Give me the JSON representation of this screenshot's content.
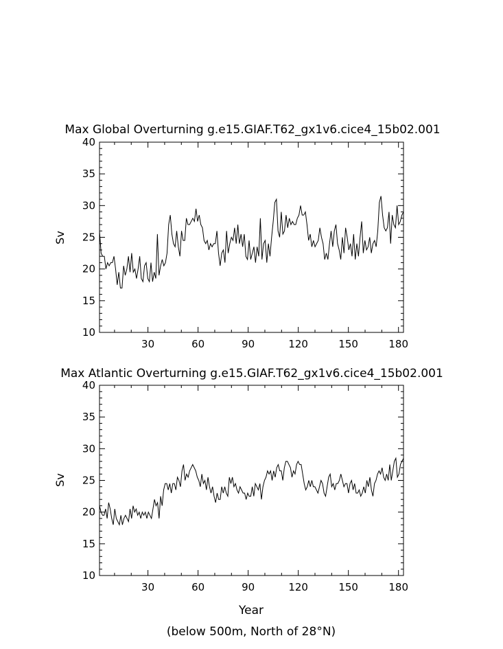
{
  "chart_data": [
    {
      "type": "line",
      "title": "Max Global Overturning g.e15.GIAF.T62_gx1v6.cice4_15b02.001",
      "ylabel": "Sv",
      "xlabel": "",
      "xlim": [
        1,
        183
      ],
      "ylim": [
        10,
        40
      ],
      "xticks": [
        30,
        60,
        90,
        120,
        150,
        180
      ],
      "yticks": [
        10,
        15,
        20,
        25,
        30,
        35,
        40
      ],
      "grid": false,
      "series": [
        {
          "values": [
            26.0,
            22.5,
            22.0,
            22.0,
            20.0,
            21.0,
            20.5,
            21.0,
            21.0,
            22.0,
            20.0,
            17.5,
            19.5,
            17.0,
            17.0,
            20.5,
            19.0,
            20.0,
            22.0,
            19.5,
            22.5,
            19.5,
            20.0,
            18.5,
            20.0,
            22.0,
            18.5,
            18.0,
            20.5,
            21.0,
            18.5,
            18.0,
            21.0,
            18.0,
            19.5,
            18.5,
            25.5,
            19.0,
            20.5,
            21.5,
            20.5,
            21.0,
            22.5,
            27.0,
            28.5,
            25.5,
            24.0,
            23.5,
            26.0,
            23.5,
            22.0,
            26.0,
            24.5,
            24.5,
            28.0,
            27.0,
            27.0,
            27.5,
            28.0,
            27.5,
            29.5,
            27.5,
            28.5,
            27.0,
            26.5,
            24.5,
            24.0,
            24.5,
            23.0,
            24.0,
            23.5,
            24.0,
            24.0,
            26.0,
            22.5,
            20.5,
            22.5,
            23.0,
            21.0,
            26.0,
            22.5,
            24.0,
            25.0,
            24.5,
            26.5,
            24.0,
            27.0,
            24.0,
            25.5,
            23.5,
            25.5,
            22.0,
            21.5,
            24.5,
            21.5,
            22.5,
            23.5,
            21.0,
            23.5,
            22.0,
            28.0,
            21.5,
            24.0,
            24.5,
            21.0,
            24.0,
            22.0,
            25.0,
            27.5,
            30.5,
            31.0,
            26.0,
            25.0,
            29.0,
            25.5,
            26.0,
            28.5,
            26.5,
            28.0,
            27.0,
            27.5,
            27.0,
            27.0,
            28.0,
            28.5,
            30.0,
            28.5,
            28.5,
            29.0,
            27.0,
            24.5,
            25.5,
            23.5,
            24.5,
            23.5,
            24.0,
            24.5,
            26.5,
            25.0,
            24.0,
            21.5,
            22.5,
            21.5,
            24.0,
            26.0,
            23.5,
            26.0,
            27.0,
            24.0,
            23.0,
            21.5,
            25.0,
            22.5,
            26.5,
            25.0,
            23.0,
            24.0,
            22.0,
            25.5,
            21.5,
            24.0,
            22.0,
            25.0,
            27.5,
            22.5,
            24.5,
            23.0,
            23.5,
            25.0,
            22.5,
            24.0,
            24.5,
            23.5,
            26.0,
            30.5,
            31.5,
            28.5,
            26.5,
            26.0,
            26.5,
            29.0,
            24.0,
            28.5,
            27.0,
            26.5,
            30.0,
            27.0,
            27.5,
            28.5,
            29.0
          ]
        }
      ]
    },
    {
      "type": "line",
      "title": "Max Atlantic Overturning g.e15.GIAF.T62_gx1v6.cice4_15b02.001",
      "ylabel": "Sv",
      "xlabel": "Year",
      "subtitle": "(below 500m, North of 28°N)",
      "xlim": [
        1,
        183
      ],
      "ylim": [
        10,
        40
      ],
      "xticks": [
        30,
        60,
        90,
        120,
        150,
        180
      ],
      "yticks": [
        10,
        15,
        20,
        25,
        30,
        35,
        40
      ],
      "grid": false,
      "series": [
        {
          "values": [
            21.0,
            20.0,
            19.5,
            19.5,
            20.5,
            19.0,
            21.5,
            20.5,
            19.0,
            18.0,
            20.5,
            19.0,
            18.5,
            18.0,
            19.5,
            18.0,
            19.0,
            19.5,
            19.0,
            18.5,
            20.5,
            19.0,
            21.0,
            20.0,
            20.5,
            19.5,
            20.0,
            19.0,
            20.0,
            19.5,
            20.0,
            19.0,
            20.0,
            19.5,
            19.0,
            20.5,
            22.0,
            21.0,
            21.5,
            19.0,
            22.5,
            21.0,
            23.5,
            24.5,
            24.5,
            23.5,
            24.5,
            23.0,
            24.5,
            24.5,
            23.5,
            25.5,
            25.0,
            24.0,
            26.5,
            27.5,
            25.0,
            26.0,
            25.5,
            26.5,
            27.0,
            27.5,
            27.0,
            26.5,
            25.5,
            25.0,
            24.0,
            26.0,
            24.5,
            25.0,
            23.5,
            25.5,
            24.0,
            23.0,
            24.0,
            22.5,
            21.5,
            23.0,
            22.0,
            22.0,
            24.0,
            23.0,
            24.0,
            23.0,
            22.5,
            25.5,
            24.5,
            25.5,
            24.0,
            24.5,
            23.5,
            23.0,
            24.0,
            23.5,
            23.0,
            23.0,
            22.0,
            23.0,
            22.5,
            22.5,
            24.0,
            22.5,
            24.5,
            24.0,
            23.5,
            24.5,
            22.0,
            24.0,
            25.0,
            25.5,
            26.5,
            26.0,
            26.5,
            25.0,
            26.5,
            25.5,
            27.0,
            27.5,
            26.5,
            26.5,
            25.0,
            27.0,
            28.0,
            28.0,
            27.5,
            27.0,
            25.5,
            26.5,
            26.0,
            27.5,
            28.0,
            27.5,
            27.5,
            26.0,
            24.5,
            23.5,
            24.0,
            25.0,
            24.0,
            25.0,
            24.0,
            24.0,
            23.5,
            23.0,
            24.0,
            25.0,
            24.5,
            23.0,
            22.5,
            24.0,
            25.5,
            26.0,
            24.0,
            24.5,
            23.5,
            24.5,
            24.5,
            25.0,
            26.0,
            25.0,
            24.0,
            24.5,
            24.5,
            23.0,
            24.5,
            25.0,
            23.5,
            24.5,
            23.0,
            23.0,
            23.5,
            22.5,
            23.0,
            24.0,
            23.0,
            25.0,
            24.0,
            25.5,
            23.5,
            22.5,
            24.5,
            25.0,
            26.0,
            26.5,
            26.0,
            27.0,
            25.5,
            25.0,
            26.0,
            25.0,
            27.5,
            25.0,
            26.5,
            28.0,
            28.5,
            25.5,
            26.0,
            27.5,
            28.0,
            28.5
          ]
        }
      ]
    }
  ]
}
